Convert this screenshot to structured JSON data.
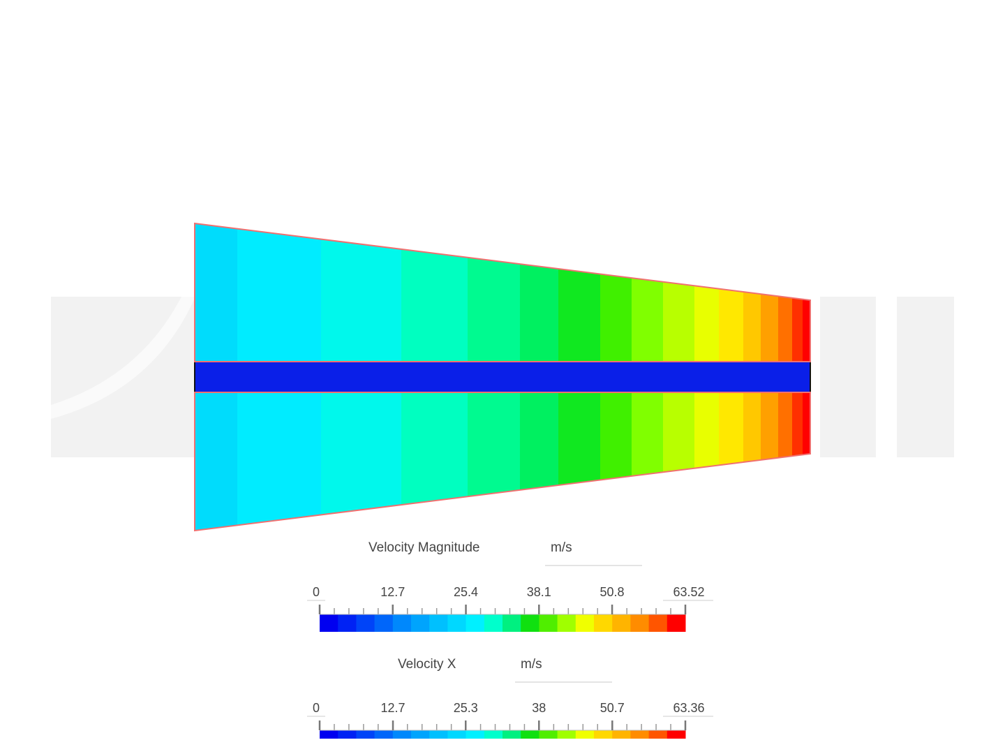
{
  "legends": [
    {
      "title": "Velocity Magnitude",
      "unit": "m/s",
      "ticks": [
        0,
        12.7,
        25.4,
        38.1,
        50.8,
        63.52
      ]
    },
    {
      "title": "Velocity X",
      "unit": "m/s",
      "ticks": [
        0,
        12.7,
        25.3,
        38,
        50.7,
        63.36
      ]
    }
  ]
}
